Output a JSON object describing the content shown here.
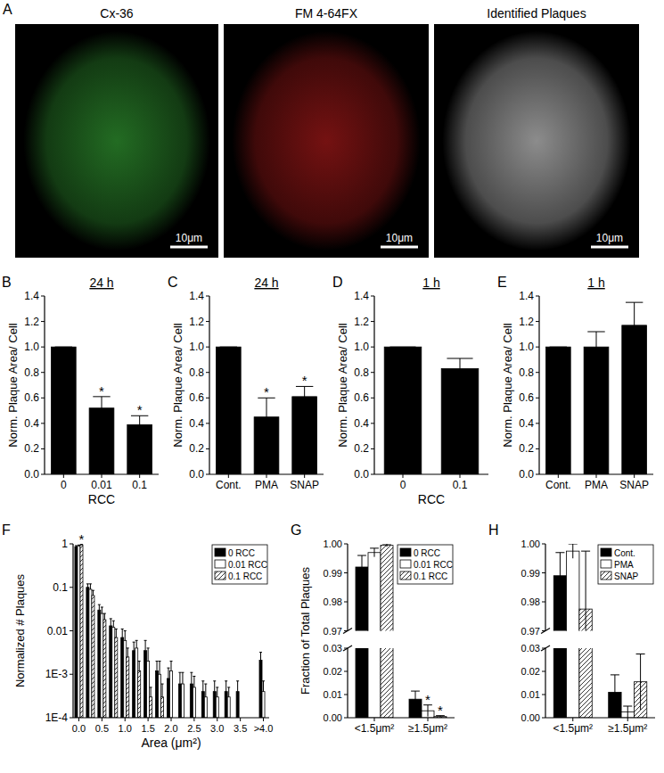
{
  "image_panel": {
    "panel": "A",
    "images": [
      {
        "title": "Cx-36",
        "scale_bar": "10μm",
        "color": "#3fc43f"
      },
      {
        "title": "FM 4-64FX",
        "scale_bar": "10μm",
        "color": "#d42020"
      },
      {
        "title": "Identified Plaques",
        "scale_bar": "10μm",
        "color": "#ffffff"
      }
    ]
  },
  "chart_data": [
    {
      "panel": "B",
      "type": "bar",
      "title": "24 h",
      "x_label": "RCC",
      "y_label": "Norm. Plaque Area/ Cell",
      "categories": [
        "0",
        "0.01",
        "0.1"
      ],
      "values": [
        1,
        0.52,
        0.39
      ],
      "errors": [
        0,
        0.09,
        0.07
      ],
      "stars": [
        null,
        "*",
        "*"
      ],
      "color": "#000000",
      "ylim": [
        0,
        1.4
      ],
      "yticks": [
        {
          "value": 0,
          "label": "0.0"
        },
        {
          "value": 0.2,
          "label": "0.2"
        },
        {
          "value": 0.4,
          "label": "0.4"
        },
        {
          "value": 0.6,
          "label": "0.6"
        },
        {
          "value": 0.8,
          "label": "0.8"
        },
        {
          "value": 1,
          "label": "1.0"
        },
        {
          "value": 1.2,
          "label": "1.2"
        },
        {
          "value": 1.4,
          "label": "1.4"
        }
      ]
    },
    {
      "panel": "C",
      "type": "bar",
      "title": "24 h",
      "y_label": "Norm. Plaque Area/ Cell",
      "categories": [
        "Cont.",
        "PMA",
        "SNAP"
      ],
      "values": [
        1,
        0.45,
        0.61
      ],
      "errors": [
        0,
        0.15,
        0.08
      ],
      "stars": [
        null,
        "*",
        "*"
      ],
      "color": "#000000",
      "ylim": [
        0,
        1.4
      ],
      "yticks": [
        {
          "value": 0,
          "label": "0.0"
        },
        {
          "value": 0.2,
          "label": "0.2"
        },
        {
          "value": 0.4,
          "label": "0.4"
        },
        {
          "value": 0.6,
          "label": "0.6"
        },
        {
          "value": 0.8,
          "label": "0.8"
        },
        {
          "value": 1,
          "label": "1.0"
        },
        {
          "value": 1.2,
          "label": "1.2"
        },
        {
          "value": 1.4,
          "label": "1.4"
        }
      ]
    },
    {
      "panel": "D",
      "type": "bar",
      "title": "1 h",
      "x_label": "RCC",
      "y_label": "Norm. Plaque Area/ Cell",
      "categories": [
        "0",
        "0.1"
      ],
      "values": [
        1,
        0.83
      ],
      "errors": [
        0,
        0.08
      ],
      "color": "#000000",
      "ylim": [
        0,
        1.4
      ],
      "yticks": [
        {
          "value": 0,
          "label": "0.0"
        },
        {
          "value": 0.2,
          "label": "0.2"
        },
        {
          "value": 0.4,
          "label": "0.4"
        },
        {
          "value": 0.6,
          "label": "0.6"
        },
        {
          "value": 0.8,
          "label": "0.8"
        },
        {
          "value": 1,
          "label": "1.0"
        },
        {
          "value": 1.2,
          "label": "1.2"
        },
        {
          "value": 1.4,
          "label": "1.4"
        }
      ]
    },
    {
      "panel": "E",
      "type": "bar",
      "title": "1 h",
      "y_label": "Norm. Plaque Area/ Cell",
      "categories": [
        "Cont.",
        "PMA",
        "SNAP"
      ],
      "values": [
        1,
        1.0,
        1.17
      ],
      "errors": [
        0,
        0.12,
        0.18
      ],
      "color": "#000000",
      "ylim": [
        0,
        1.4
      ],
      "yticks": [
        {
          "value": 0,
          "label": "0.0"
        },
        {
          "value": 0.2,
          "label": "0.2"
        },
        {
          "value": 0.4,
          "label": "0.4"
        },
        {
          "value": 0.6,
          "label": "0.6"
        },
        {
          "value": 0.8,
          "label": "0.8"
        },
        {
          "value": 1,
          "label": "1.0"
        },
        {
          "value": 1.2,
          "label": "1.2"
        },
        {
          "value": 1.4,
          "label": "1.4"
        }
      ]
    },
    {
      "panel": "F",
      "type": "bar",
      "x_label": "Area (μm²)",
      "y_label": "Normalized # Plaques",
      "log": "y",
      "legend": "upper right",
      "categories": [
        "0.0",
        null,
        "0.5",
        null,
        "1.0",
        null,
        "1.5",
        null,
        "2.0",
        null,
        "2.5",
        null,
        "3.0",
        null,
        "3.5",
        null,
        ">4.0"
      ],
      "series": [
        {
          "name": "0 RCC",
          "color": "#000000",
          "values": [
            0.86,
            0.1,
            0.03,
            0.013,
            0.007,
            0.0035,
            0.0035,
            0.0012,
            0.0008,
            0.0006,
            0.0006,
            0.0004,
            0.0004,
            0.0004,
            0.0004,
            null,
            0.0021
          ],
          "errors": [
            0.05,
            0.02,
            0.01,
            0.006,
            0.004,
            0.002,
            0.0025,
            0.0008,
            0.0006,
            0.0005,
            0.0005,
            0.0003,
            0.0003,
            0.0003,
            0.0003,
            null,
            0.0011
          ]
        },
        {
          "name": "0.01 RCC",
          "color": "#ffffff",
          "values": [
            0.9,
            0.09,
            0.025,
            0.012,
            0.006,
            0.004,
            0.002,
            0.001,
            0.0012,
            0.0006,
            0.0005,
            0.0003,
            0.0003,
            0.0003,
            null,
            null,
            0.0004
          ],
          "errors": [
            0.04,
            0.03,
            0.01,
            0.005,
            0.004,
            0.002,
            0.002,
            0.001,
            0.0008,
            0.0005,
            0.0004,
            0.0003,
            0.0002,
            0.0002,
            null,
            null,
            0.0003
          ]
        },
        {
          "name": "0.1 RCC",
          "color": "#ffffff",
          "line_style": "hatched",
          "values": [
            0.95,
            0.065,
            0.018,
            0.007,
            0.0025,
            0.0012,
            0.0003,
            0.0003,
            null,
            null,
            null,
            null,
            null,
            null,
            null,
            null,
            null
          ],
          "errors": [
            0.02,
            0.02,
            0.007,
            0.004,
            0.0015,
            0.0008,
            0.0002,
            0.0003,
            null,
            null,
            null,
            null,
            null,
            null,
            null,
            null,
            null
          ],
          "stars": [
            "*",
            null,
            null,
            null,
            null,
            null,
            null,
            null,
            null,
            null,
            null,
            null,
            null,
            null,
            null,
            null,
            null
          ]
        }
      ],
      "ylim": [
        0.0001,
        1
      ],
      "yticks": [
        {
          "value": 0.0001,
          "label": "1E-4"
        },
        {
          "value": 0.001,
          "label": "1E-3"
        },
        0.01,
        0.1,
        1
      ]
    },
    {
      "panel": "G",
      "type": "bar",
      "y_label": "Fraction of Total Plaques",
      "legend": "upper right",
      "categories": [
        "<1.5μm²",
        "≥1.5μm²"
      ],
      "series": [
        {
          "name": "0 RCC",
          "color": "#000000",
          "values": [
            0.992,
            0.008
          ],
          "errors": [
            0.004,
            0.0035
          ]
        },
        {
          "name": "0.01 RCC",
          "color": "#ffffff",
          "values": [
            0.997,
            0.003
          ],
          "errors": [
            0.0015,
            0.0025
          ],
          "stars": [
            null,
            "*"
          ]
        },
        {
          "name": "0.1 RCC",
          "color": "#ffffff",
          "line_style": "hatched",
          "values": [
            0.9995,
            0.0005
          ],
          "errors": [
            0.0005,
            0.0004
          ],
          "stars": [
            null,
            "*"
          ]
        }
      ],
      "ylim": [
        0,
        1
      ],
      "yticks": [
        {
          "value": 0,
          "label": "0.00"
        },
        0.01,
        0.02,
        0.03,
        0.97,
        0.98,
        0.99,
        {
          "value": 1,
          "label": "1.00"
        }
      ]
    },
    {
      "panel": "H",
      "type": "bar",
      "legend": "upper right",
      "categories": [
        "<1.5μm²",
        "≥1.5μm²"
      ],
      "series": [
        {
          "name": "Cont.",
          "color": "#000000",
          "values": [
            0.989,
            0.011
          ],
          "errors": [
            0.008,
            0.0075
          ]
        },
        {
          "name": "PMA",
          "color": "#ffffff",
          "values": [
            0.9975,
            0.0025
          ],
          "errors": [
            0.0025,
            0.0025
          ]
        },
        {
          "name": "SNAP",
          "color": "#ffffff",
          "line_style": "hatched",
          "values": [
            0.9775,
            0.0155
          ],
          "errors": [
            0.02,
            0.012
          ]
        }
      ],
      "ylim": [
        0,
        1
      ],
      "yticks": [
        {
          "value": 0,
          "label": "0.00"
        },
        0.01,
        0.02,
        0.03,
        0.97,
        0.98,
        0.99,
        {
          "value": 1,
          "label": "1.00"
        }
      ]
    }
  ]
}
